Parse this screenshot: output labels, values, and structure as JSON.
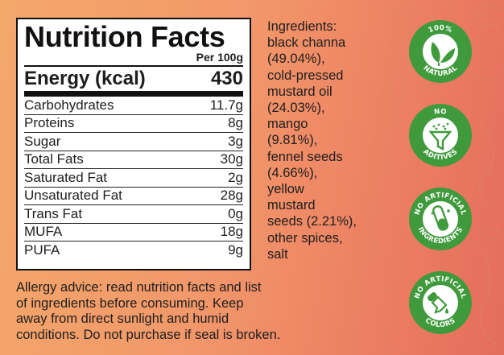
{
  "nutrition": {
    "title": "Nutrition Facts",
    "per": "Per 100g",
    "energy_label": "Energy (kcal)",
    "energy_value": "430",
    "rows": [
      {
        "label": "Carbohydrates",
        "value": "11.7g"
      },
      {
        "label": "Proteins",
        "value": "8g"
      },
      {
        "label": "Sugar",
        "value": "3g"
      },
      {
        "label": "Total Fats",
        "value": "30g"
      },
      {
        "label": "Saturated Fat",
        "value": "2g"
      },
      {
        "label": "Unsaturated Fat",
        "value": "28g"
      },
      {
        "label": "Trans Fat",
        "value": "0g"
      },
      {
        "label": "MUFA",
        "value": "18g"
      },
      {
        "label": "PUFA",
        "value": "9g"
      }
    ]
  },
  "ingredients": {
    "lines": [
      "Ingredients:",
      "black channa",
      "(49.04%),",
      "cold-pressed",
      "mustard oil",
      "(24.03%),",
      "mango",
      "(9.81%),",
      "fennel seeds",
      "(4.66%),",
      "yellow",
      "mustard",
      "seeds (2.21%),",
      "other spices,",
      "salt"
    ]
  },
  "allergy": {
    "lines": [
      "Allergy advice: read nutrition facts and list",
      "of ingredients before consuming. Keep",
      "away from direct sunlight and humid",
      "conditions. Do not purchase if seal is broken."
    ]
  },
  "badges": [
    {
      "icon": "leaves-icon",
      "top_text": "100%",
      "bottom_text": "NATURAL"
    },
    {
      "icon": "funnel-icon",
      "top_text": "NO",
      "bottom_text": "ADITIVES"
    },
    {
      "icon": "test-tube-icon",
      "top_text": "NO ARTIFICIAL",
      "bottom_text": "INGREDIENTS"
    },
    {
      "icon": "dropper-icon",
      "top_text": "NO ARTIFICIAL",
      "bottom_text": "COLORS"
    }
  ],
  "colors": {
    "badge_green": "#3f9a3c",
    "badge_ring": "#ffffff",
    "badge_inner": "#ffffff",
    "background_start": "#f4a86a",
    "background_end": "#e46d5c"
  }
}
